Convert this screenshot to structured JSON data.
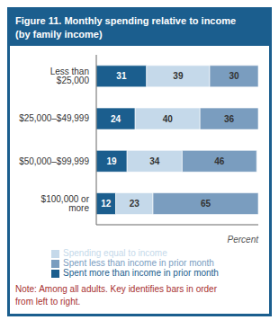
{
  "chart_data": {
    "type": "bar",
    "orientation": "horizontal",
    "stacked": true,
    "data_labels": true,
    "title": "Figure 11. Monthly spending relative to income",
    "subtitle": "(by family income)",
    "xlabel": "Percent",
    "categories": [
      "Less than $25,000",
      "$25,000–$49,999",
      "$50,000–$99,999",
      "$100,000 or more"
    ],
    "series": [
      {
        "name": "Spent more than income in prior month",
        "color": "#1b5e8e",
        "values": [
          31,
          24,
          19,
          12
        ]
      },
      {
        "name": "Spending equal to income",
        "color": "#c5d9ea",
        "values": [
          39,
          40,
          34,
          23
        ]
      },
      {
        "name": "Spent less than income in prior month",
        "color": "#7a9dbf",
        "values": [
          30,
          36,
          46,
          65
        ]
      }
    ],
    "xlim": [
      0,
      100
    ],
    "tick_labels": "y",
    "grid": false,
    "annotations": [
      "Note: Among all adults. Key identifies bars in order\nfrom left to right."
    ]
  }
}
